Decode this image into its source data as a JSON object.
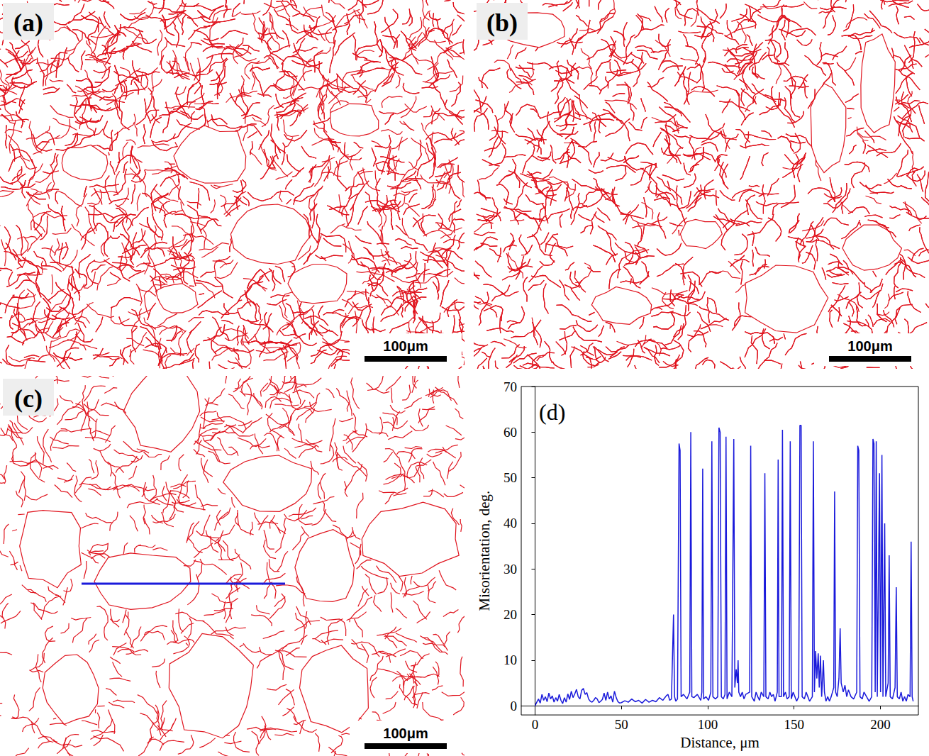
{
  "panels": [
    {
      "label": "(a)",
      "scale_bar": "100μm"
    },
    {
      "label": "(b)",
      "scale_bar": "100μm"
    },
    {
      "label": "(c)",
      "scale_bar": "100μm"
    }
  ],
  "chart_data": {
    "type": "line",
    "title": "(d)",
    "x_label": "Distance, μm",
    "y_label": "Misorientation, deg.",
    "xlim": [
      -8,
      222
    ],
    "xticks": [
      0,
      50,
      100,
      150,
      200
    ],
    "ylim": [
      -2,
      70
    ],
    "yticks": [
      0,
      10,
      20,
      30,
      40,
      50,
      60,
      70
    ],
    "grid": false,
    "color": "#1a1adb",
    "x": [
      0,
      1,
      2,
      3,
      4,
      5,
      6,
      7,
      8,
      9,
      10,
      11,
      12,
      13,
      14,
      15,
      16,
      17,
      18,
      19,
      20,
      21,
      22,
      23,
      24,
      25,
      26,
      27,
      28,
      29,
      30,
      31,
      32,
      33,
      34,
      35,
      36,
      37,
      38,
      39,
      40,
      41,
      42,
      43,
      44,
      45,
      46,
      47,
      48,
      49,
      50,
      52,
      54,
      56,
      58,
      60,
      62,
      64,
      66,
      68,
      70,
      72,
      74,
      76,
      77,
      78,
      79,
      80.2,
      80.8,
      81.5,
      82.5,
      83.4,
      84,
      84.6,
      86,
      88,
      89.6,
      90.2,
      90.8,
      92,
      94,
      96,
      96.6,
      97.1,
      97.6,
      99,
      100.5,
      101.8,
      102.4,
      103,
      104.5,
      105.8,
      106.5,
      107.2,
      107.9,
      109,
      110,
      110.6,
      111.2,
      112.5,
      114,
      115.1,
      115.7,
      116.5,
      117.2,
      117.6,
      118,
      119,
      120,
      121,
      122,
      124.3,
      124.9,
      125.5,
      127,
      128,
      129,
      130,
      131,
      132.5,
      133.1,
      133.7,
      135,
      136,
      137,
      138,
      139,
      140.3,
      140.8,
      141.3,
      142.7,
      143.3,
      143.9,
      145,
      146,
      147.2,
      147.8,
      148.4,
      149.5,
      150.5,
      151.5,
      152.7,
      153.4,
      154.1,
      154.7,
      156,
      157,
      158,
      159,
      160.6,
      161.2,
      161.8,
      162.5,
      163.2,
      164,
      164.6,
      165.3,
      166,
      167,
      167.6,
      168.5,
      169.5,
      170.5,
      171.5,
      173,
      173.5,
      174.1,
      175,
      176,
      176.7,
      177.3,
      178.5,
      179.5,
      180.5,
      181.5,
      183,
      184.5,
      186.3,
      186.9,
      187.5,
      188.2,
      189.5,
      190.5,
      192,
      193.5,
      195,
      195.7,
      196.3,
      197,
      197.6,
      198.2,
      199.5,
      200.1,
      200.9,
      201.5,
      202.5,
      203.1,
      204.5,
      205.1,
      205.7,
      207,
      208.5,
      209.2,
      209.8,
      211,
      212,
      213,
      214,
      215,
      216,
      217.2,
      217.8,
      218.4,
      219
    ],
    "values": [
      0,
      0.8,
      1.5,
      0.6,
      2.5,
      1.2,
      2,
      0.9,
      2.8,
      1.5,
      2.2,
      0.8,
      1.8,
      1,
      2.5,
      1.2,
      0.5,
      1.8,
      0.8,
      2.6,
      1.4,
      3.2,
      1.8,
      2.6,
      3.6,
      2,
      1.5,
      3.4,
      3.8,
      2.5,
      2.9,
      1.5,
      1,
      0.8,
      1.2,
      1.8,
      1.5,
      0.7,
      1,
      1.4,
      2.8,
      1.2,
      3,
      1.5,
      2.2,
      0.8,
      3.2,
      1.8,
      0.9,
      0.6,
      0.7,
      1.1,
      0.8,
      1.5,
      0.9,
      1.2,
      0.6,
      1.4,
      0.8,
      1.2,
      0.9,
      1.8,
      1.2,
      2.2,
      2.5,
      1.2,
      1.5,
      20,
      2,
      1,
      1.5,
      57.5,
      56,
      2,
      2.5,
      1.5,
      3,
      60,
      2,
      1.8,
      2.5,
      1.2,
      3,
      52,
      1.5,
      2,
      1.2,
      3,
      58,
      2,
      1.5,
      2,
      61,
      60,
      2,
      1.5,
      2.5,
      59,
      1.5,
      3,
      2,
      58.5,
      4,
      8,
      5,
      10,
      3,
      2,
      3,
      1.5,
      2.5,
      3,
      57,
      2,
      1,
      3,
      2,
      1.2,
      3,
      2,
      51,
      2,
      1.5,
      3,
      2,
      2.5,
      1,
      3,
      54,
      2,
      2,
      60.5,
      2,
      3,
      1.5,
      2,
      58,
      1.5,
      3,
      2,
      1,
      2,
      61.5,
      61.5,
      2,
      1.5,
      3,
      2,
      1,
      2,
      58,
      3,
      12,
      6,
      11.5,
      4,
      11,
      2,
      10,
      3,
      1,
      2,
      1,
      2,
      4,
      47,
      3,
      2,
      6,
      17,
      5,
      3,
      4.5,
      2,
      3.5,
      2,
      1.5,
      3,
      57,
      56,
      2,
      1.5,
      3,
      2,
      1,
      2,
      58.5,
      57.5,
      3,
      58,
      2,
      51,
      3,
      55,
      2,
      40,
      2,
      5,
      33,
      2,
      1.5,
      4,
      26,
      2,
      1.5,
      3,
      1,
      2,
      1,
      2.5,
      2,
      36,
      2,
      1
    ]
  }
}
